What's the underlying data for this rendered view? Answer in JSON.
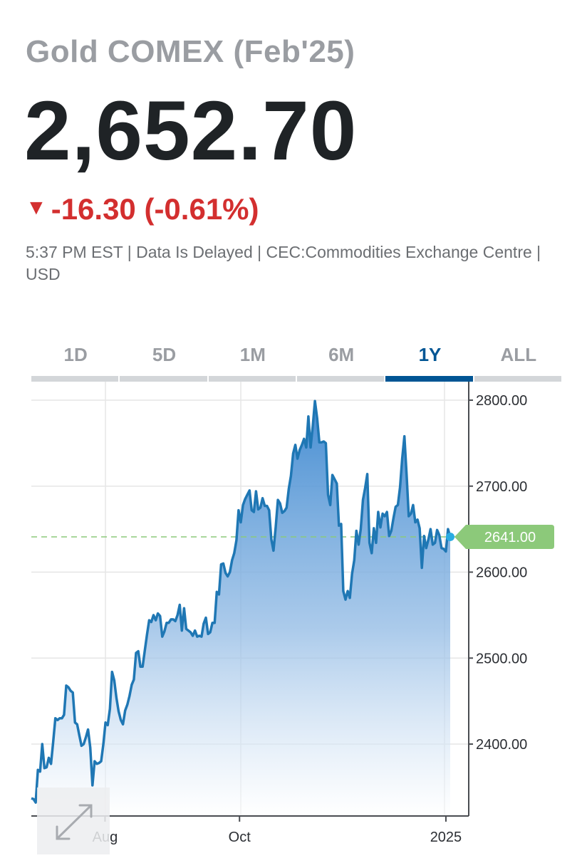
{
  "quote": {
    "title": "Gold COMEX (Feb'25)",
    "price": "2,652.70",
    "change_arrow": "▼",
    "change": "-16.30 (-0.61%)",
    "meta": "5:37 PM EST | Data Is Delayed | CEC:Commodities Exchange Centre | USD",
    "change_color": "#d32f2f"
  },
  "tabs": [
    {
      "label": "1D",
      "active": false
    },
    {
      "label": "5D",
      "active": false
    },
    {
      "label": "1M",
      "active": false
    },
    {
      "label": "6M",
      "active": false
    },
    {
      "label": "1Y",
      "active": true
    },
    {
      "label": "ALL",
      "active": false
    }
  ],
  "expand_button": {
    "icon": "expand-icon"
  },
  "chart_data": {
    "type": "area",
    "x_ticks": [
      {
        "label": "Aug",
        "pos": 0.1759
      },
      {
        "label": "Oct",
        "pos": 0.497
      },
      {
        "label": "2025",
        "pos": 0.9897
      }
    ],
    "y_ticks": [
      {
        "label": "2800.00",
        "value": 2800
      },
      {
        "label": "2700.00",
        "value": 2700
      },
      {
        "label": "2600.00",
        "value": 2600
      },
      {
        "label": "2500.00",
        "value": 2500
      },
      {
        "label": "2400.00",
        "value": 2400
      }
    ],
    "ylim": [
      2318,
      2822
    ],
    "series": [
      {
        "values": [
          2337,
          2336,
          2332,
          2370,
          2368,
          2400,
          2372,
          2373,
          2384,
          2377,
          2402,
          2430,
          2428,
          2430,
          2430,
          2434,
          2468,
          2466,
          2462,
          2460,
          2425,
          2423,
          2410,
          2398,
          2400,
          2408,
          2417,
          2396,
          2352,
          2380,
          2377,
          2378,
          2380,
          2400,
          2425,
          2422,
          2441,
          2484,
          2474,
          2454,
          2438,
          2428,
          2423,
          2439,
          2446,
          2456,
          2469,
          2475,
          2506,
          2508,
          2490,
          2490,
          2509,
          2527,
          2544,
          2542,
          2550,
          2544,
          2552,
          2549,
          2525,
          2531,
          2541,
          2541,
          2545,
          2545,
          2543,
          2550,
          2562,
          2532,
          2558,
          2534,
          2532,
          2530,
          2526,
          2532,
          2525,
          2526,
          2525,
          2540,
          2547,
          2528,
          2530,
          2541,
          2541,
          2577,
          2574,
          2609,
          2610,
          2599,
          2595,
          2600,
          2614,
          2622,
          2637,
          2672,
          2658,
          2678,
          2685,
          2690,
          2695,
          2672,
          2670,
          2694,
          2673,
          2675,
          2686,
          2677,
          2677,
          2672,
          2638,
          2625,
          2652,
          2684,
          2680,
          2669,
          2671,
          2675,
          2697,
          2712,
          2738,
          2748,
          2732,
          2742,
          2748,
          2755,
          2745,
          2781,
          2745,
          2770,
          2799,
          2779,
          2751,
          2751,
          2752,
          2750,
          2690,
          2678,
          2713,
          2708,
          2703,
          2654,
          2656,
          2578,
          2568,
          2578,
          2570,
          2598,
          2614,
          2648,
          2632,
          2650,
          2684,
          2698,
          2714,
          2634,
          2622,
          2651,
          2634,
          2670,
          2652,
          2668,
          2665,
          2670,
          2642,
          2648,
          2663,
          2676,
          2678,
          2699,
          2732,
          2758,
          2713,
          2665,
          2668,
          2678,
          2658,
          2661,
          2651,
          2605,
          2642,
          2628,
          2638,
          2650,
          2632,
          2634,
          2649,
          2643,
          2628,
          2627,
          2624,
          2650,
          2641
        ]
      }
    ],
    "reference_value": 2641,
    "last_label": "2641.00",
    "colors": {
      "line": "#1f77b4",
      "fill_top": "#3a86cf",
      "grid": "#e6e6e6",
      "reference_line": "#8cc97a",
      "last_badge": "#8cc97a",
      "last_point": "#29abe2"
    }
  }
}
